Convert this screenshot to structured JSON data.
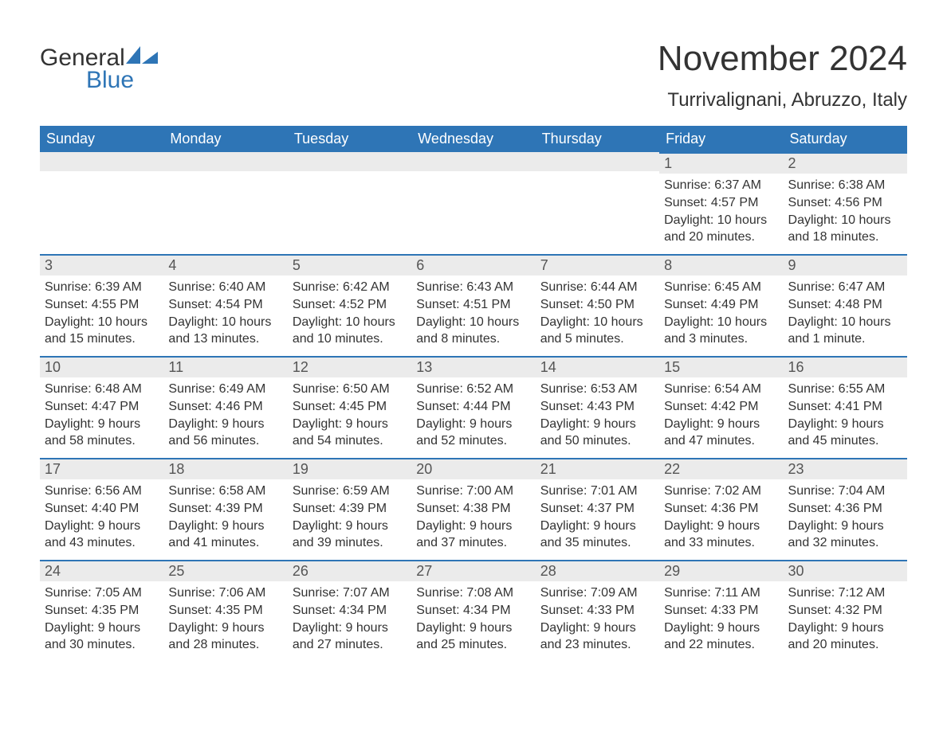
{
  "logo": {
    "word1": "General",
    "word2": "Blue",
    "brand_color": "#2e75b6",
    "text_color": "#333333"
  },
  "header": {
    "title": "November 2024",
    "location": "Turrivalignani, Abruzzo, Italy"
  },
  "styling": {
    "header_bg": "#2e75b6",
    "header_text": "#ffffff",
    "daynum_bg": "#ebebeb",
    "daynum_text": "#555555",
    "cell_border_top": "#2e75b6",
    "body_text": "#333333",
    "page_bg": "#ffffff",
    "font_family": "Arial",
    "title_fontsize": 44,
    "location_fontsize": 24,
    "dayheader_fontsize": 18,
    "cell_fontsize": 16
  },
  "day_headers": [
    "Sunday",
    "Monday",
    "Tuesday",
    "Wednesday",
    "Thursday",
    "Friday",
    "Saturday"
  ],
  "weeks": [
    [
      null,
      null,
      null,
      null,
      null,
      {
        "n": "1",
        "sr": "Sunrise: 6:37 AM",
        "ss": "Sunset: 4:57 PM",
        "d1": "Daylight: 10 hours",
        "d2": "and 20 minutes."
      },
      {
        "n": "2",
        "sr": "Sunrise: 6:38 AM",
        "ss": "Sunset: 4:56 PM",
        "d1": "Daylight: 10 hours",
        "d2": "and 18 minutes."
      }
    ],
    [
      {
        "n": "3",
        "sr": "Sunrise: 6:39 AM",
        "ss": "Sunset: 4:55 PM",
        "d1": "Daylight: 10 hours",
        "d2": "and 15 minutes."
      },
      {
        "n": "4",
        "sr": "Sunrise: 6:40 AM",
        "ss": "Sunset: 4:54 PM",
        "d1": "Daylight: 10 hours",
        "d2": "and 13 minutes."
      },
      {
        "n": "5",
        "sr": "Sunrise: 6:42 AM",
        "ss": "Sunset: 4:52 PM",
        "d1": "Daylight: 10 hours",
        "d2": "and 10 minutes."
      },
      {
        "n": "6",
        "sr": "Sunrise: 6:43 AM",
        "ss": "Sunset: 4:51 PM",
        "d1": "Daylight: 10 hours",
        "d2": "and 8 minutes."
      },
      {
        "n": "7",
        "sr": "Sunrise: 6:44 AM",
        "ss": "Sunset: 4:50 PM",
        "d1": "Daylight: 10 hours",
        "d2": "and 5 minutes."
      },
      {
        "n": "8",
        "sr": "Sunrise: 6:45 AM",
        "ss": "Sunset: 4:49 PM",
        "d1": "Daylight: 10 hours",
        "d2": "and 3 minutes."
      },
      {
        "n": "9",
        "sr": "Sunrise: 6:47 AM",
        "ss": "Sunset: 4:48 PM",
        "d1": "Daylight: 10 hours",
        "d2": "and 1 minute."
      }
    ],
    [
      {
        "n": "10",
        "sr": "Sunrise: 6:48 AM",
        "ss": "Sunset: 4:47 PM",
        "d1": "Daylight: 9 hours",
        "d2": "and 58 minutes."
      },
      {
        "n": "11",
        "sr": "Sunrise: 6:49 AM",
        "ss": "Sunset: 4:46 PM",
        "d1": "Daylight: 9 hours",
        "d2": "and 56 minutes."
      },
      {
        "n": "12",
        "sr": "Sunrise: 6:50 AM",
        "ss": "Sunset: 4:45 PM",
        "d1": "Daylight: 9 hours",
        "d2": "and 54 minutes."
      },
      {
        "n": "13",
        "sr": "Sunrise: 6:52 AM",
        "ss": "Sunset: 4:44 PM",
        "d1": "Daylight: 9 hours",
        "d2": "and 52 minutes."
      },
      {
        "n": "14",
        "sr": "Sunrise: 6:53 AM",
        "ss": "Sunset: 4:43 PM",
        "d1": "Daylight: 9 hours",
        "d2": "and 50 minutes."
      },
      {
        "n": "15",
        "sr": "Sunrise: 6:54 AM",
        "ss": "Sunset: 4:42 PM",
        "d1": "Daylight: 9 hours",
        "d2": "and 47 minutes."
      },
      {
        "n": "16",
        "sr": "Sunrise: 6:55 AM",
        "ss": "Sunset: 4:41 PM",
        "d1": "Daylight: 9 hours",
        "d2": "and 45 minutes."
      }
    ],
    [
      {
        "n": "17",
        "sr": "Sunrise: 6:56 AM",
        "ss": "Sunset: 4:40 PM",
        "d1": "Daylight: 9 hours",
        "d2": "and 43 minutes."
      },
      {
        "n": "18",
        "sr": "Sunrise: 6:58 AM",
        "ss": "Sunset: 4:39 PM",
        "d1": "Daylight: 9 hours",
        "d2": "and 41 minutes."
      },
      {
        "n": "19",
        "sr": "Sunrise: 6:59 AM",
        "ss": "Sunset: 4:39 PM",
        "d1": "Daylight: 9 hours",
        "d2": "and 39 minutes."
      },
      {
        "n": "20",
        "sr": "Sunrise: 7:00 AM",
        "ss": "Sunset: 4:38 PM",
        "d1": "Daylight: 9 hours",
        "d2": "and 37 minutes."
      },
      {
        "n": "21",
        "sr": "Sunrise: 7:01 AM",
        "ss": "Sunset: 4:37 PM",
        "d1": "Daylight: 9 hours",
        "d2": "and 35 minutes."
      },
      {
        "n": "22",
        "sr": "Sunrise: 7:02 AM",
        "ss": "Sunset: 4:36 PM",
        "d1": "Daylight: 9 hours",
        "d2": "and 33 minutes."
      },
      {
        "n": "23",
        "sr": "Sunrise: 7:04 AM",
        "ss": "Sunset: 4:36 PM",
        "d1": "Daylight: 9 hours",
        "d2": "and 32 minutes."
      }
    ],
    [
      {
        "n": "24",
        "sr": "Sunrise: 7:05 AM",
        "ss": "Sunset: 4:35 PM",
        "d1": "Daylight: 9 hours",
        "d2": "and 30 minutes."
      },
      {
        "n": "25",
        "sr": "Sunrise: 7:06 AM",
        "ss": "Sunset: 4:35 PM",
        "d1": "Daylight: 9 hours",
        "d2": "and 28 minutes."
      },
      {
        "n": "26",
        "sr": "Sunrise: 7:07 AM",
        "ss": "Sunset: 4:34 PM",
        "d1": "Daylight: 9 hours",
        "d2": "and 27 minutes."
      },
      {
        "n": "27",
        "sr": "Sunrise: 7:08 AM",
        "ss": "Sunset: 4:34 PM",
        "d1": "Daylight: 9 hours",
        "d2": "and 25 minutes."
      },
      {
        "n": "28",
        "sr": "Sunrise: 7:09 AM",
        "ss": "Sunset: 4:33 PM",
        "d1": "Daylight: 9 hours",
        "d2": "and 23 minutes."
      },
      {
        "n": "29",
        "sr": "Sunrise: 7:11 AM",
        "ss": "Sunset: 4:33 PM",
        "d1": "Daylight: 9 hours",
        "d2": "and 22 minutes."
      },
      {
        "n": "30",
        "sr": "Sunrise: 7:12 AM",
        "ss": "Sunset: 4:32 PM",
        "d1": "Daylight: 9 hours",
        "d2": "and 20 minutes."
      }
    ]
  ]
}
